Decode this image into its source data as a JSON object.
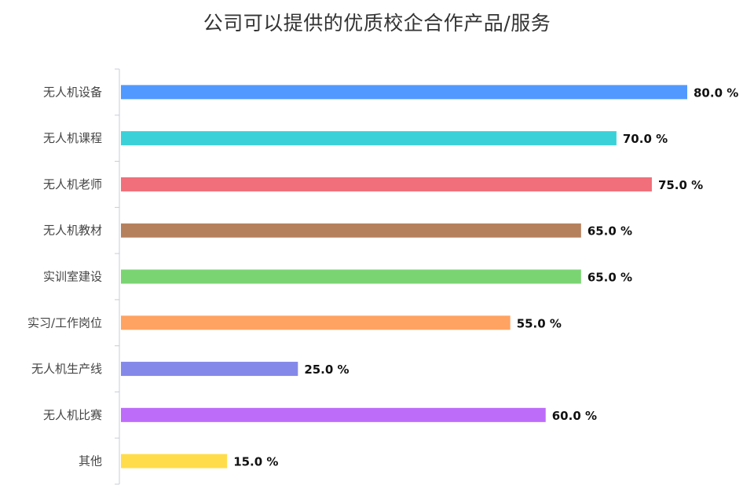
{
  "chart_data": {
    "type": "bar",
    "orientation": "horizontal",
    "title": "公司可以提供的优质校企合作产品/服务",
    "categories": [
      "无人机设备",
      "无人机课程",
      "无人机老师",
      "无人机教材",
      "实训室建设",
      "实习/工作岗位",
      "无人机生产线",
      "无人机比赛",
      "其他"
    ],
    "values": [
      80.0,
      70.0,
      75.0,
      65.0,
      65.0,
      55.0,
      25.0,
      60.0,
      15.0
    ],
    "value_labels": [
      "80.0 %",
      "70.0 %",
      "75.0 %",
      "65.0 %",
      "65.0 %",
      "55.0 %",
      "25.0 %",
      "60.0 %",
      "15.0 %"
    ],
    "colors": [
      "#5199FF",
      "#3AD1D8",
      "#F06F7A",
      "#B5805C",
      "#7AD472",
      "#FFA362",
      "#8488E8",
      "#BD6CFA",
      "#FFDD4A"
    ],
    "xlim": [
      0,
      100
    ],
    "grid": false,
    "legend": "none"
  }
}
